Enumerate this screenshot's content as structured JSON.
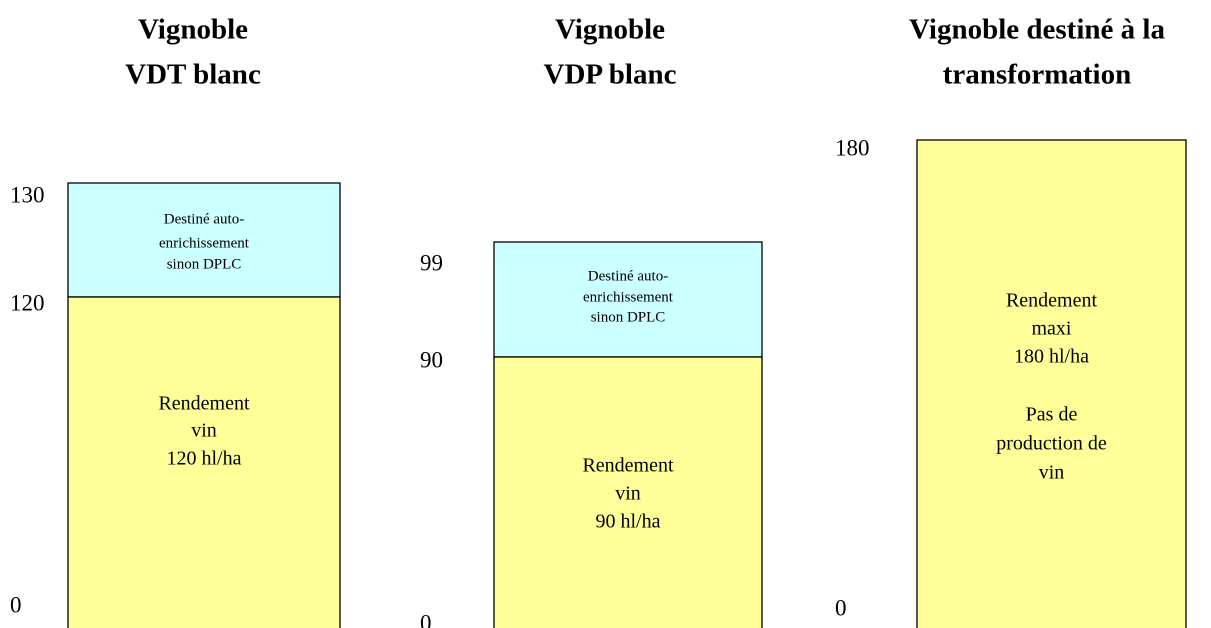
{
  "panels": [
    {
      "title": [
        "Vignoble",
        "VDT blanc"
      ],
      "axis_labels": [
        "130",
        "120",
        "0"
      ],
      "segments": [
        {
          "lines": [
            "Destiné auto-",
            "enrichissement",
            "sinon DPLC"
          ]
        },
        {
          "lines": [
            "Rendement",
            "vin",
            "120 hl/ha"
          ]
        }
      ]
    },
    {
      "title": [
        "Vignoble",
        "VDP blanc"
      ],
      "axis_labels": [
        "99",
        "90",
        "0"
      ],
      "segments": [
        {
          "lines": [
            "Destiné auto-",
            "enrichissement",
            "sinon DPLC"
          ]
        },
        {
          "lines": [
            "Rendement",
            "vin",
            "90 hl/ha"
          ]
        }
      ]
    },
    {
      "title": [
        "Vignoble destiné à la",
        "transformation"
      ],
      "axis_labels": [
        "180",
        "0"
      ],
      "segments": [
        {
          "lines": [
            "Rendement",
            "maxi",
            "180 hl/ha",
            "Pas de",
            "production de",
            "vin"
          ]
        }
      ]
    }
  ]
}
